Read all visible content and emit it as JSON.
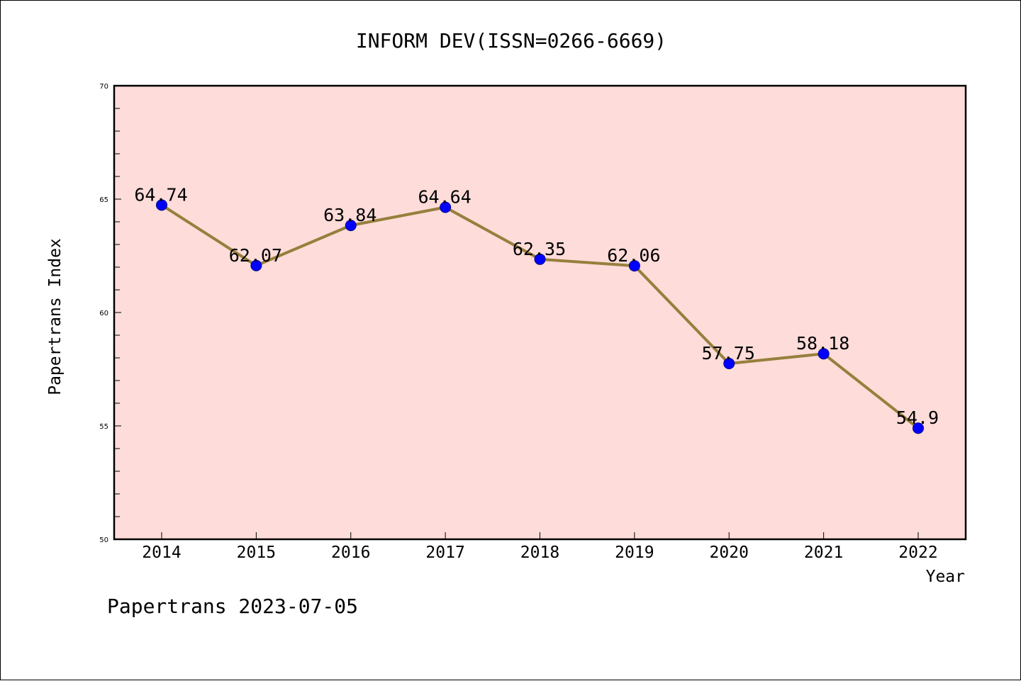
{
  "chart_data": {
    "type": "line",
    "title": "INFORM DEV(ISSN=0266-6669)",
    "xlabel": "Year",
    "ylabel": "Papertrans Index",
    "categories": [
      "2014",
      "2015",
      "2016",
      "2017",
      "2018",
      "2019",
      "2020",
      "2021",
      "2022"
    ],
    "series": [
      {
        "values": [
          64.74,
          62.07,
          63.84,
          64.64,
          62.35,
          62.06,
          57.75,
          58.18,
          54.9
        ],
        "labels": [
          "64.74",
          "62.07",
          "63.84",
          "64.64",
          "62.35",
          "62.06",
          "57.75",
          "58.18",
          "54.9"
        ]
      }
    ],
    "ylim": [
      50,
      70
    ],
    "yticks": [
      "50",
      "55",
      "60",
      "65",
      "70"
    ],
    "grid": false,
    "colors": {
      "plot_background": "#fddcd9",
      "line": "#967f3c",
      "marker": "#0000ff",
      "marker_edge": "#00008b"
    }
  },
  "footer": {
    "text": "Papertrans 2023-07-05"
  }
}
